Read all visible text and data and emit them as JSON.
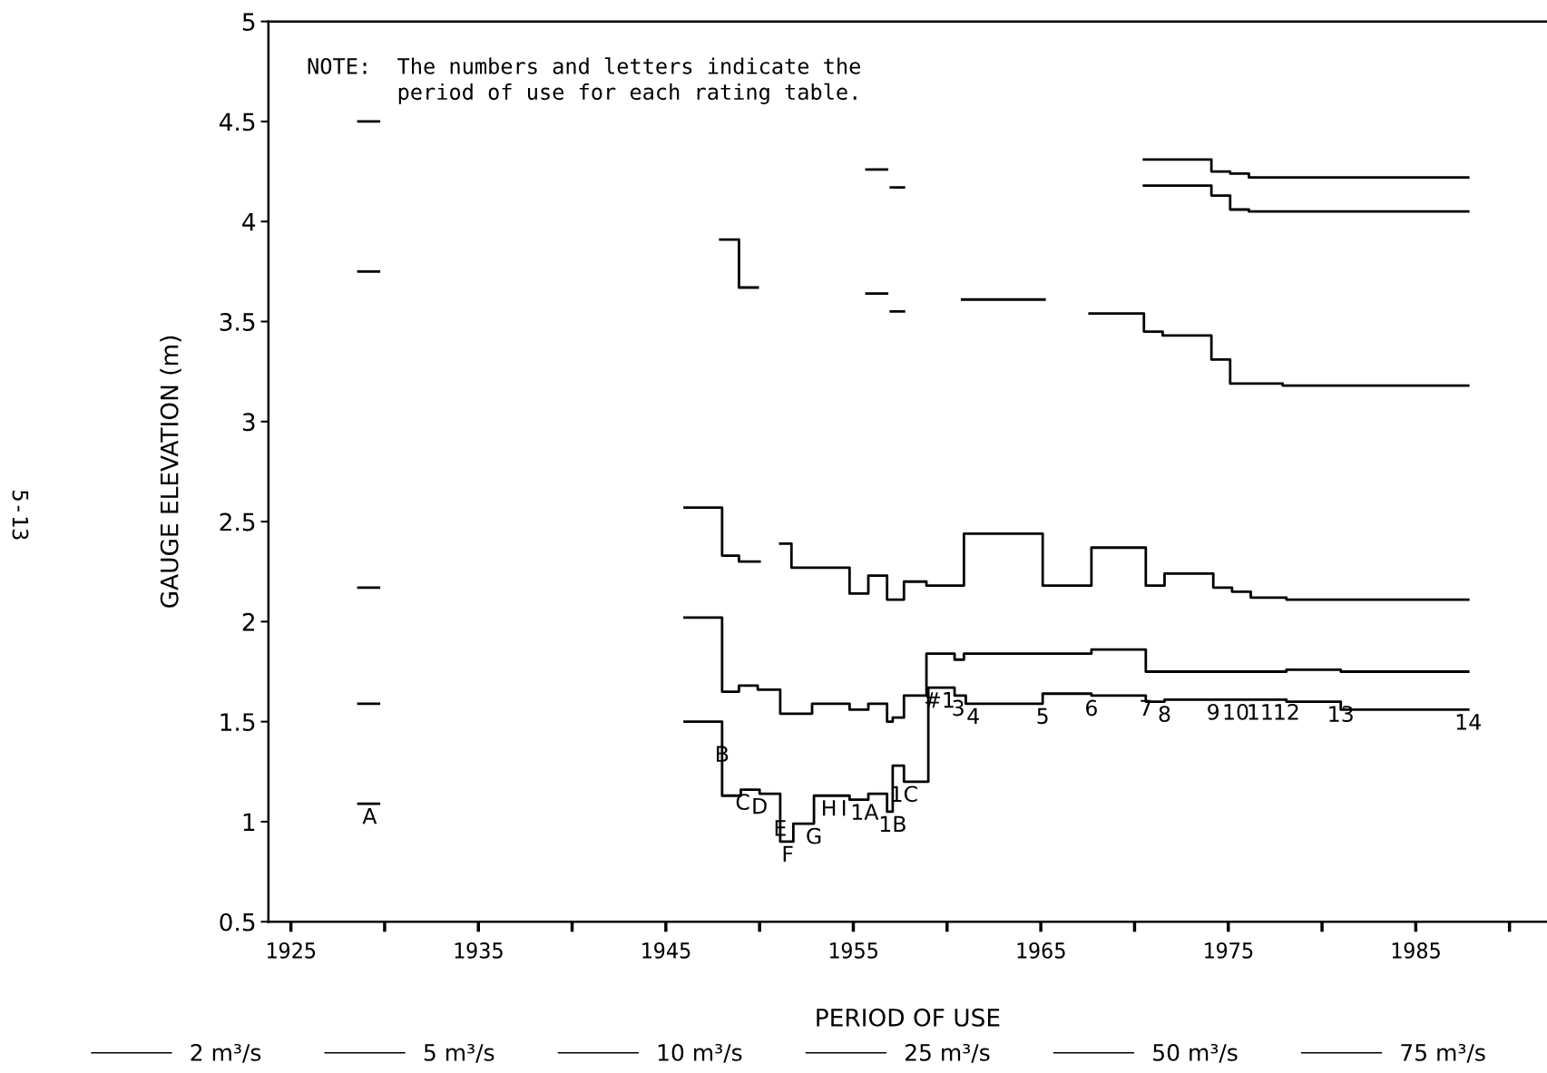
{
  "chart_data": {
    "type": "step",
    "xlabel": "PERIOD OF USE",
    "ylabel": "GAUGE ELEVATION (m)",
    "xlim": [
      1923.8,
      1992
    ],
    "ylim": [
      0.5,
      5
    ],
    "xticks": [
      1925,
      {
        "value": 1930,
        "label": null
      },
      1935,
      {
        "value": 1940,
        "label": null
      },
      1945,
      {
        "value": 1950,
        "label": null
      },
      1955,
      {
        "value": 1960,
        "label": null
      },
      1965,
      {
        "value": 1970,
        "label": null
      },
      1975,
      {
        "value": 1980,
        "label": null
      },
      1985,
      {
        "value": 1990,
        "label": null
      }
    ],
    "yticks": [
      0.5,
      1,
      1.5,
      2,
      2.5,
      3,
      3.5,
      4,
      4.5,
      5
    ],
    "grid": false,
    "legend": "bottom",
    "marker": "none",
    "line_style": "solid",
    "series": [
      {
        "name": "2 m³/s",
        "color": "#000000",
        "x": [
          1928.6,
          1929.7,
          1946,
          1948.0,
          1949.0,
          1950.0,
          1951.1,
          1951.8,
          1952.9,
          1954.8,
          1955.8,
          1956.8,
          1957.1,
          1957.7,
          1959.0,
          1960.4,
          1961.0,
          1965.1,
          1967.7,
          1970.6,
          1971.6,
          1978.1,
          1981.0,
          1987.8
        ],
        "values": [
          1.09,
          null,
          1.5,
          1.13,
          1.16,
          1.14,
          0.9,
          0.99,
          1.13,
          1.11,
          1.14,
          1.05,
          1.28,
          1.2,
          1.67,
          1.63,
          1.59,
          1.64,
          1.63,
          1.6,
          1.61,
          1.6,
          1.56,
          1.56
        ]
      },
      {
        "name": "5 m³/s",
        "color": "#000000",
        "x": [
          1928.6,
          1929.7,
          1946,
          1948.0,
          1948.9,
          1949.9,
          1951.1,
          1952.8,
          1954.8,
          1955.8,
          1956.8,
          1957.1,
          1957.7,
          1958.9,
          1960.4,
          1960.9,
          1967.7,
          1970.6,
          1978.1,
          1981.0,
          1987.8
        ],
        "values": [
          1.59,
          null,
          2.02,
          1.65,
          1.68,
          1.66,
          1.54,
          1.59,
          1.56,
          1.59,
          1.5,
          1.52,
          1.63,
          1.84,
          1.81,
          1.84,
          1.86,
          1.75,
          1.76,
          1.75,
          1.75
        ]
      },
      {
        "name": "10 m³/s",
        "color": "#000000",
        "x": [
          1928.6,
          1929.7,
          1946,
          1948.0,
          1948.9,
          1950.0,
          1951.1,
          1951.7,
          1954.8,
          1955.8,
          1956.8,
          1957.7,
          1958.9,
          1960.9,
          1965.1,
          1967.7,
          1970.6,
          1971.6,
          1974.2,
          1975.2,
          1976.2,
          1978.1,
          1987.8
        ],
        "values": [
          2.17,
          null,
          2.57,
          2.33,
          2.3,
          null,
          2.39,
          2.27,
          2.14,
          2.23,
          2.11,
          2.2,
          2.18,
          2.44,
          2.18,
          2.37,
          2.18,
          2.24,
          2.17,
          2.15,
          2.12,
          2.11,
          2.11
        ]
      },
      {
        "name": "25 m³/s",
        "color": "#000000",
        "x": [
          1928.6,
          1929.7,
          1947.9,
          1948.9,
          1949.9,
          1955.7,
          1956.8,
          1957.0,
          1957.7,
          1960.8,
          1965.2,
          1967.6,
          1970.5,
          1971.5,
          1974.1,
          1975.1,
          1977.9,
          1987.8
        ],
        "values": [
          3.75,
          null,
          3.91,
          3.67,
          null,
          3.64,
          null,
          3.55,
          null,
          3.61,
          null,
          3.54,
          3.45,
          3.43,
          3.31,
          3.19,
          3.18,
          3.18
        ]
      },
      {
        "name": "50 m³/s",
        "color": "#000000",
        "x": [
          1928.6,
          1929.7,
          1955.7,
          1956.8,
          1957.0,
          1957.7,
          1970.5,
          1974.1,
          1975.1,
          1976.1,
          1987.8
        ],
        "values": [
          4.5,
          null,
          4.26,
          null,
          4.17,
          null,
          4.18,
          4.13,
          4.06,
          4.05,
          4.05
        ]
      },
      {
        "name": "75 m³/s",
        "color": "#000000",
        "x": [
          1970.5,
          1974.1,
          1975.1,
          1976.1,
          1987.8
        ],
        "values": [
          4.31,
          4.25,
          4.24,
          4.22,
          4.22
        ]
      }
    ],
    "annotations": [
      "NOTE:  The numbers and letters indicate the\n       period of use for each rating table.",
      "5-13",
      {
        "text": "A",
        "x": 1929.2,
        "y": 1.09
      },
      {
        "text": "B",
        "x": 1948.0,
        "y": 1.4
      },
      {
        "text": "C",
        "x": 1949.1,
        "y": 1.16
      },
      {
        "text": "D",
        "x": 1950.0,
        "y": 1.14
      },
      {
        "text": "E",
        "x": 1951.1,
        "y": 1.03
      },
      {
        "text": "F",
        "x": 1951.5,
        "y": 0.9
      },
      {
        "text": "G",
        "x": 1952.9,
        "y": 0.99
      },
      {
        "text": "H",
        "x": 1953.7,
        "y": 1.13
      },
      {
        "text": "I",
        "x": 1954.5,
        "y": 1.13
      },
      {
        "text": "1A",
        "x": 1955.6,
        "y": 1.11
      },
      {
        "text": "1B",
        "x": 1957.1,
        "y": 1.05
      },
      {
        "text": "1C",
        "x": 1957.7,
        "y": 1.2
      },
      {
        "text": "#1",
        "x": 1959.6,
        "y": 1.67
      },
      {
        "text": "3",
        "x": 1960.6,
        "y": 1.63
      },
      {
        "text": "4",
        "x": 1961.4,
        "y": 1.59
      },
      {
        "text": "5",
        "x": 1965.1,
        "y": 1.59
      },
      {
        "text": "6",
        "x": 1967.7,
        "y": 1.63
      },
      {
        "text": "7",
        "x": 1970.6,
        "y": 1.63
      },
      {
        "text": "8",
        "x": 1971.6,
        "y": 1.6
      },
      {
        "text": "9",
        "x": 1974.2,
        "y": 1.61
      },
      {
        "text": "10",
        "x": 1975.4,
        "y": 1.61
      },
      {
        "text": "11",
        "x": 1976.7,
        "y": 1.61
      },
      {
        "text": "12",
        "x": 1978.1,
        "y": 1.61
      },
      {
        "text": "13",
        "x": 1981.0,
        "y": 1.6
      },
      {
        "text": "14",
        "x": 1987.8,
        "y": 1.56
      }
    ]
  }
}
